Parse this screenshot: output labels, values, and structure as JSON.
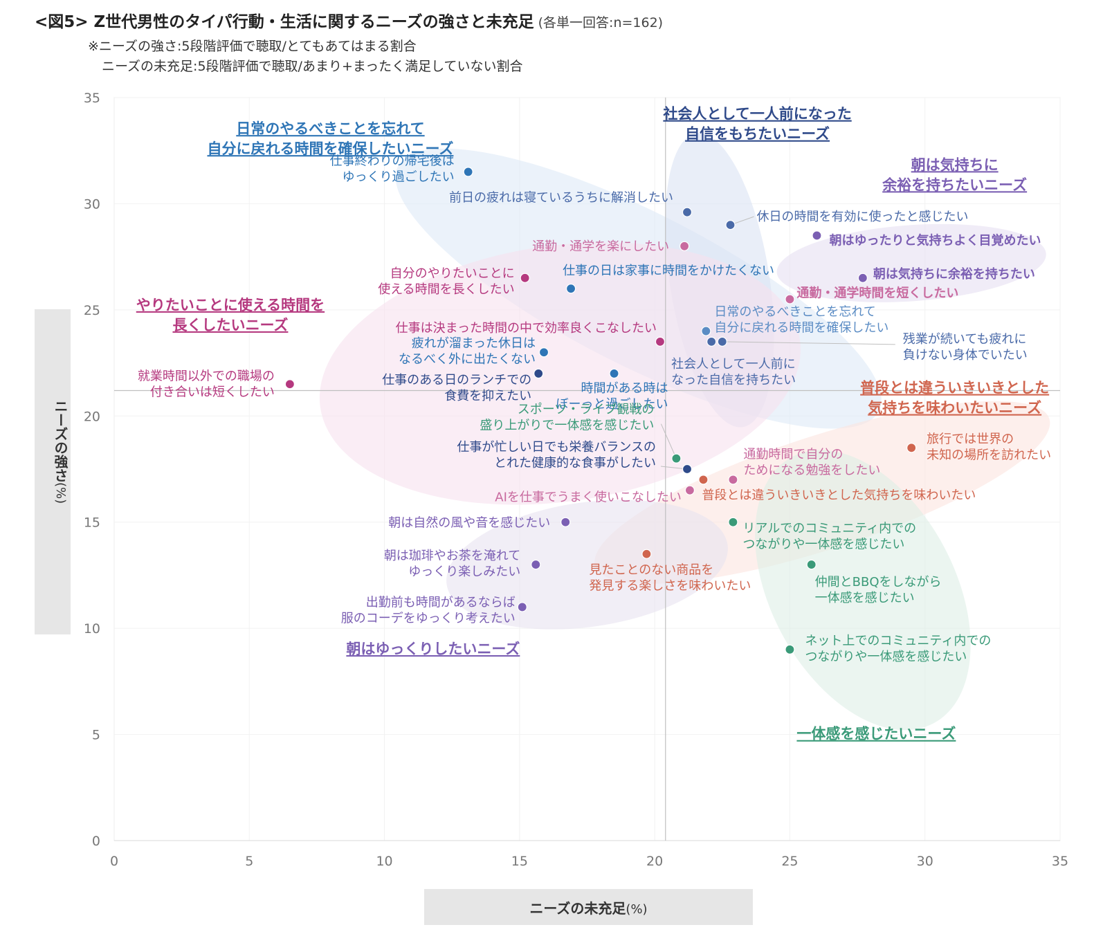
{
  "header": {
    "title": "<図5> Z世代男性のタイパ行動・生活に関するニーズの強さと未充足",
    "title_note": "(各単一回答:n=162)",
    "subtitle_1": "※ニーズの強さ:5段階評価で聴取/とてもあてはまる割合",
    "subtitle_2": "ニーズの未充足:5段階評価で聴取/あまり+まったく満足していない割合"
  },
  "chart_data": {
    "type": "scatter",
    "title": "<図5> Z世代男性のタイパ行動・生活に関するニーズの強さと未充足",
    "xlabel": "ニーズの未充足",
    "xlabel_unit": "(%)",
    "ylabel": "ニーズの強さ",
    "ylabel_unit": "(%)",
    "xlim": [
      0,
      35
    ],
    "ylim": [
      0,
      35
    ],
    "x_ticks": [
      0,
      5,
      10,
      15,
      20,
      25,
      30,
      35
    ],
    "y_ticks": [
      0,
      5,
      10,
      15,
      20,
      25,
      30,
      35
    ],
    "reference_lines": {
      "x": 20.4,
      "y": 21.2
    },
    "groups": [
      {
        "id": "g_jikan",
        "name": "日常のやるべきことを忘れて\n自分に戻れる時間を確保したいニーズ",
        "color": "#2e75b6",
        "fill": "#deeaf6"
      },
      {
        "id": "g_shakai",
        "name": "社会人として一人前になった\n自信をもちたいニーズ",
        "color": "#2f4a8a",
        "fill": "#dbe3f3"
      },
      {
        "id": "g_asa_yoyu",
        "name": "朝は気持ちに\n余裕を持ちたいニーズ",
        "color": "#7b5fb3",
        "fill": "#e6e0f2"
      },
      {
        "id": "g_yaritai",
        "name": "やりたいことに使える時間を\n長くしたいニーズ",
        "color": "#b5397f",
        "fill": "#f7e1ee"
      },
      {
        "id": "g_ikiiki",
        "name": "普段とは違ういきいきとした\n気持ちを味わいたいニーズ",
        "color": "#d0654e",
        "fill": "#fbe5e0"
      },
      {
        "id": "g_asa_yukkuri",
        "name": "朝はゆっくりしたいニーズ",
        "color": "#7b5fb3",
        "fill": "#e7e2f0"
      },
      {
        "id": "g_ittai",
        "name": "一体感を感じたいニーズ",
        "color": "#3a9a78",
        "fill": "#ddefe6"
      }
    ],
    "points": [
      {
        "label": "仕事終わりの帰宅後は\nゆっくり過ごしたい",
        "x": 13.1,
        "y": 31.5,
        "color": "#2e75b6",
        "bold": false
      },
      {
        "label": "前日の疲れは寝ているうちに解消したい",
        "x": 21.2,
        "y": 29.6,
        "color": "#4a6aa8",
        "bold": false
      },
      {
        "label": "休日の時間を有効に使ったと感じたい",
        "x": 22.8,
        "y": 29.0,
        "color": "#4a6aa8",
        "bold": false
      },
      {
        "label": "通勤・通学を楽にしたい",
        "x": 21.1,
        "y": 28.0,
        "color": "#c86a9f",
        "bold": false
      },
      {
        "label": "朝はゆったりと気持ちよく目覚めたい",
        "x": 26.0,
        "y": 28.5,
        "color": "#7b5fb3",
        "bold": true
      },
      {
        "label": "自分のやりたいことに\n使える時間を長くしたい",
        "x": 15.2,
        "y": 26.5,
        "color": "#b5397f",
        "bold": false
      },
      {
        "label": "仕事の日は家事に時間をかけたくない",
        "x": 16.9,
        "y": 26.0,
        "color": "#2e75b6",
        "bold": false
      },
      {
        "label": "朝は気持ちに余裕を持ちたい",
        "x": 27.7,
        "y": 26.5,
        "color": "#7b5fb3",
        "bold": true
      },
      {
        "label": "通勤・通学時間を短くしたい",
        "x": 25.0,
        "y": 25.5,
        "color": "#c86a9f",
        "bold": true
      },
      {
        "label": "日常のやるべきことを忘れて\n自分に戻れる時間を確保したい",
        "x": 21.9,
        "y": 24.0,
        "color": "#5b8cc4",
        "bold": false
      },
      {
        "label": "社会人として一人前に\nなった自信を持ちたい",
        "x": 22.1,
        "y": 23.5,
        "color": "#4a6aa8",
        "bold": false
      },
      {
        "label": "残業が続いても疲れに\n負けない身体でいたい",
        "x": 22.5,
        "y": 23.5,
        "color": "#4a6aa8",
        "bold": false
      },
      {
        "label": "仕事は決まった時間の中で効率良くこなしたい",
        "x": 20.2,
        "y": 23.5,
        "color": "#b5397f",
        "bold": false
      },
      {
        "label": "疲れが溜まった休日は\nなるべく外に出たくない",
        "x": 15.9,
        "y": 23.0,
        "color": "#2e75b6",
        "bold": false
      },
      {
        "label": "時間がある時は\nぼーっと過ごしたい",
        "x": 18.5,
        "y": 22.0,
        "color": "#2e75b6",
        "bold": false
      },
      {
        "label": "仕事のある日のランチでの\n食費を抑えたい",
        "x": 15.7,
        "y": 22.0,
        "color": "#2f4a8a",
        "bold": false
      },
      {
        "label": "就業時間以外での職場の\n付き合いは短くしたい",
        "x": 6.5,
        "y": 21.5,
        "color": "#b5397f",
        "bold": false
      },
      {
        "label": "スポーツ・ライブ観戦の\n盛り上がりで一体感を感じたい",
        "x": 20.8,
        "y": 18.0,
        "color": "#3a9a78",
        "bold": false
      },
      {
        "label": "仕事が忙しい日でも栄養バランスの\nとれた健康的な食事がしたい",
        "x": 21.2,
        "y": 17.5,
        "color": "#2f4a8a",
        "bold": false
      },
      {
        "label": "旅行では世界の\n未知の場所を訪れたい",
        "x": 29.5,
        "y": 18.5,
        "color": "#d0654e",
        "bold": false
      },
      {
        "label": "通勤時間で自分の\nためになる勉強をしたい",
        "x": 22.9,
        "y": 17.0,
        "color": "#c86a9f",
        "bold": false
      },
      {
        "label": "普段とは違ういきいきとした気持ちを味わいたい",
        "x": 21.8,
        "y": 17.0,
        "color": "#d0654e",
        "bold": false
      },
      {
        "label": "AIを仕事でうまく使いこなしたい",
        "x": 21.3,
        "y": 16.5,
        "color": "#c86a9f",
        "bold": false
      },
      {
        "label": "朝は自然の風や音を感じたい",
        "x": 16.7,
        "y": 15.0,
        "color": "#7b5fb3",
        "bold": false
      },
      {
        "label": "リアルでのコミュニティ内での\nつながりや一体感を感じたい",
        "x": 22.9,
        "y": 15.0,
        "color": "#3a9a78",
        "bold": false
      },
      {
        "label": "朝は珈琲やお茶を淹れて\nゆっくり楽しみたい",
        "x": 15.6,
        "y": 13.0,
        "color": "#7b5fb3",
        "bold": false
      },
      {
        "label": "見たことのない商品を\n発見する楽しさを味わいたい",
        "x": 19.7,
        "y": 13.5,
        "color": "#d0654e",
        "bold": false
      },
      {
        "label": "仲間とBBQをしながら\n一体感を感じたい",
        "x": 25.8,
        "y": 13.0,
        "color": "#3a9a78",
        "bold": false
      },
      {
        "label": "出勤前も時間があるならば\n服のコーデをゆっくり考えたい",
        "x": 15.1,
        "y": 11.0,
        "color": "#7b5fb3",
        "bold": false
      },
      {
        "label": "ネット上でのコミュニティ内での\nつながりや一体感を感じたい",
        "x": 25.0,
        "y": 9.0,
        "color": "#3a9a78",
        "bold": false
      }
    ]
  }
}
